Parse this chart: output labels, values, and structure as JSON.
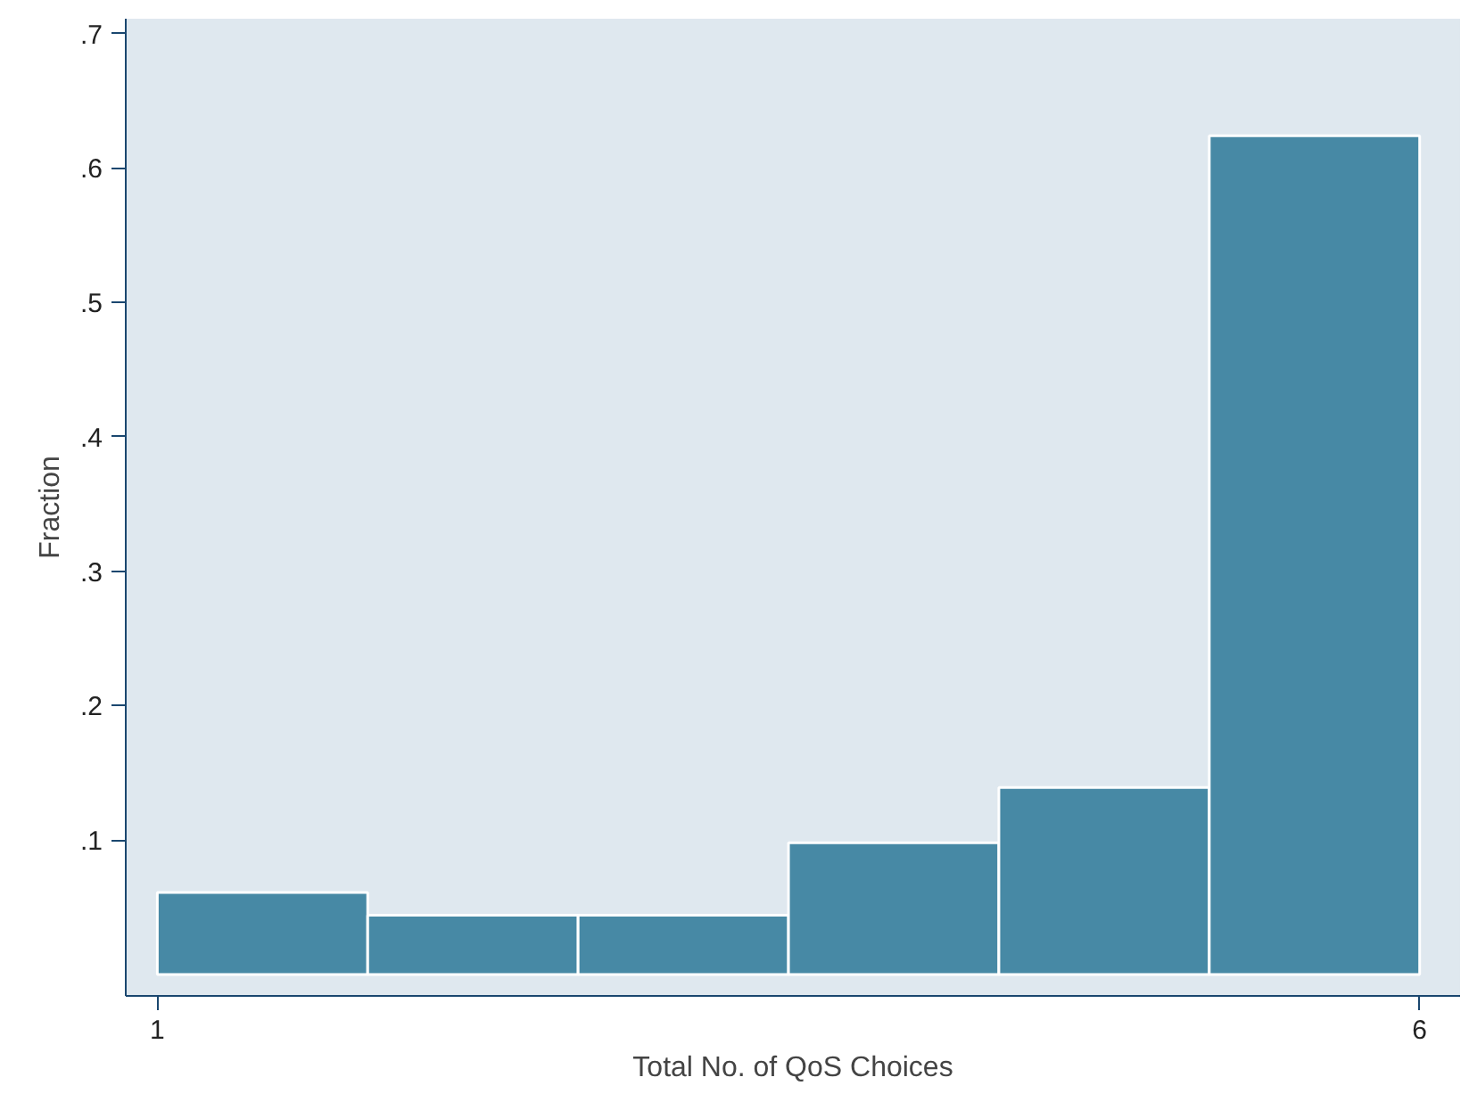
{
  "chart_data": {
    "type": "histogram",
    "xlabel": "Total No. of QoS Choices",
    "ylabel": "Fraction",
    "bins": [
      1,
      1.8333,
      2.6667,
      3.5,
      4.3333,
      5.1667,
      6
    ],
    "values": [
      0.061,
      0.044,
      0.044,
      0.098,
      0.139,
      0.624
    ],
    "color": "#4789a5",
    "xlim": [
      0.875,
      6.16
    ],
    "ylim": [
      -0.016,
      0.711
    ],
    "xticks": [
      1,
      6
    ],
    "yticks": [
      {
        "value": 0.1,
        "label": ".1"
      },
      {
        "value": 0.2,
        "label": ".2"
      },
      {
        "value": 0.3,
        "label": ".3"
      },
      {
        "value": 0.4,
        "label": ".4"
      },
      {
        "value": 0.5,
        "label": ".5"
      },
      {
        "value": 0.6,
        "label": ".6"
      },
      {
        "value": 0.7,
        "label": ".7"
      }
    ],
    "grid": false
  }
}
